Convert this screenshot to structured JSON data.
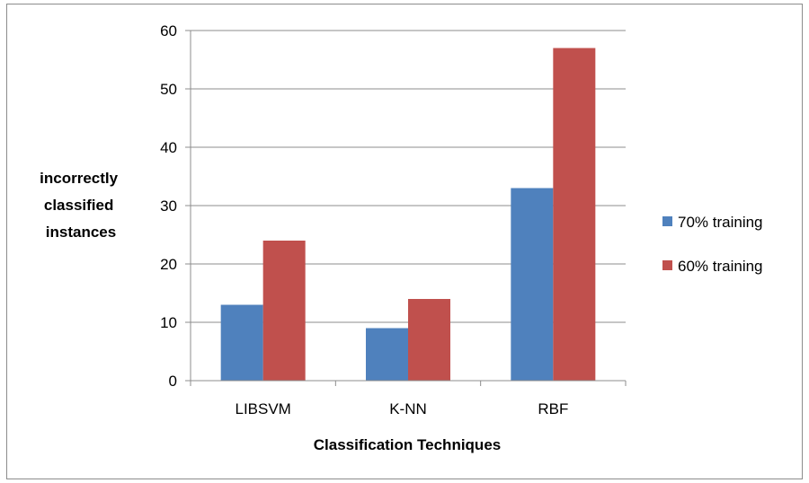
{
  "chart_data": {
    "type": "bar",
    "categories": [
      "LIBSVM",
      "K-NN",
      "RBF"
    ],
    "series": [
      {
        "name": "70% training",
        "values": [
          13,
          9,
          33
        ],
        "color": "#4f81bd"
      },
      {
        "name": "60% training",
        "values": [
          24,
          14,
          57
        ],
        "color": "#c0504d"
      }
    ],
    "xlabel": "Classification Techniques",
    "ylabel": [
      "incorrectly",
      "classified",
      "instances"
    ],
    "ylim": [
      0,
      60
    ],
    "yticks": [
      0,
      10,
      20,
      30,
      40,
      50,
      60
    ],
    "grid": true,
    "legend": "right"
  }
}
